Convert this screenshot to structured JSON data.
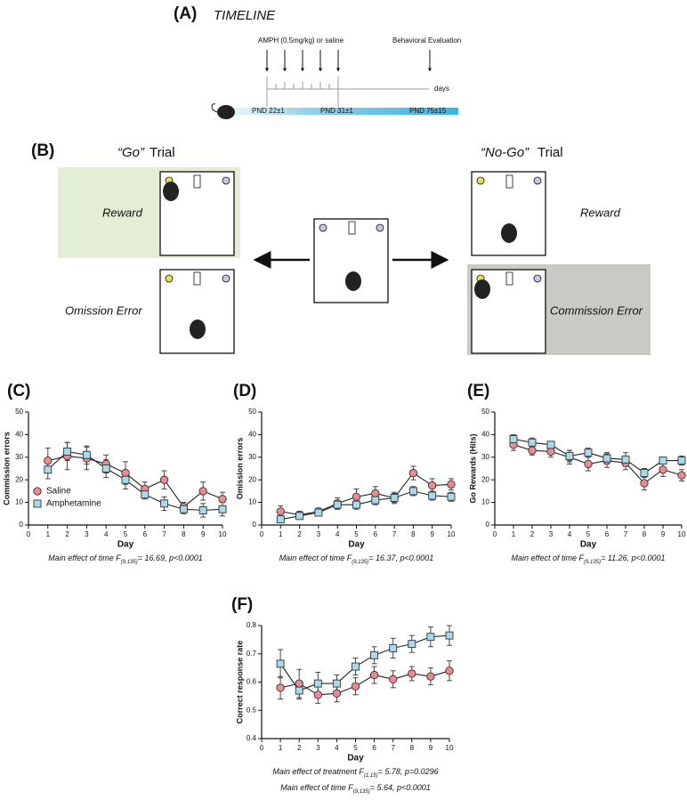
{
  "timeline": {
    "panel_label": "(A)",
    "title": "TIMELINE",
    "injection_label": "AMPH (0.5mg/kg) or saline",
    "evaluation_label": "Behavioral Evaluation",
    "days_label": "days",
    "stages": [
      "PND 22±1",
      "PND 31±1",
      "PND 75±15"
    ]
  },
  "task": {
    "panel_label": "(B)",
    "go_title": "“Go”",
    "go_trial_word": "Trial",
    "no_go_title": "“No-Go”",
    "no_go_trial_word": "Trial",
    "go_reward": "Reward",
    "omission": "Omission Error",
    "no_go_reward": "Reward",
    "commission": "Commission Error"
  },
  "chart_data": [
    {
      "type": "line",
      "panel_label": "(C)",
      "xlabel": "Day",
      "ylabel": "Commission errors",
      "x": [
        1,
        2,
        3,
        4,
        5,
        6,
        7,
        8,
        9,
        10
      ],
      "xlim": [
        0,
        10
      ],
      "xticks": [
        0,
        1,
        2,
        3,
        4,
        5,
        6,
        7,
        8,
        9,
        10
      ],
      "ylim": [
        0,
        50
      ],
      "yticks": [
        0,
        10,
        20,
        30,
        40,
        50
      ],
      "legend": true,
      "series": [
        {
          "name": "Saline",
          "color": "#ee8a92",
          "marker": "circle",
          "values": [
            28.5,
            30.5,
            29.5,
            27,
            23,
            16,
            20,
            8,
            15,
            11.5
          ],
          "errors": [
            5.5,
            6,
            5,
            4,
            5,
            3,
            4,
            2,
            4,
            3
          ]
        },
        {
          "name": "Amphetamine",
          "color": "#a9d9ec",
          "marker": "square",
          "values": [
            24.5,
            32.5,
            31,
            25,
            20,
            13.5,
            9.5,
            7,
            6.5,
            7
          ],
          "errors": [
            4,
            4,
            4,
            4,
            4,
            2,
            3,
            2,
            3,
            3
          ]
        }
      ],
      "captions": [
        {
          "text": "Main effect of time F",
          "sub": "(9,135)",
          "rest": "= 16.69, p<0.0001"
        }
      ]
    },
    {
      "type": "line",
      "panel_label": "(D)",
      "xlabel": "Day",
      "ylabel": "Omission errors",
      "x": [
        1,
        2,
        3,
        4,
        5,
        6,
        7,
        8,
        9,
        10
      ],
      "xlim": [
        0,
        10
      ],
      "xticks": [
        0,
        1,
        2,
        3,
        4,
        5,
        6,
        7,
        8,
        9,
        10
      ],
      "ylim": [
        0,
        50
      ],
      "yticks": [
        0,
        10,
        20,
        30,
        40,
        50
      ],
      "legend": false,
      "series": [
        {
          "name": "Saline",
          "color": "#ee8a92",
          "marker": "circle",
          "values": [
            6,
            4.5,
            6,
            9.5,
            12.5,
            14,
            12,
            23,
            17.5,
            18
          ],
          "errors": [
            2.5,
            1.5,
            1.5,
            2.5,
            3.5,
            3,
            2.5,
            3,
            3,
            2.5
          ]
        },
        {
          "name": "Amphetamine",
          "color": "#a9d9ec",
          "marker": "square",
          "values": [
            2.5,
            4,
            5.5,
            9,
            9,
            11,
            12,
            15,
            13,
            12.5
          ],
          "errors": [
            1.5,
            1.5,
            1.5,
            2,
            2,
            2,
            2,
            2,
            2,
            2
          ]
        }
      ],
      "captions": [
        {
          "text": "Main effect of time F",
          "sub": "(9,135)",
          "rest": "= 16.37, p<0.0001"
        }
      ]
    },
    {
      "type": "line",
      "panel_label": "(E)",
      "xlabel": "Day",
      "ylabel": "Go Rewards (Hits)",
      "x": [
        1,
        2,
        3,
        4,
        5,
        6,
        7,
        8,
        9,
        10
      ],
      "xlim": [
        0,
        10
      ],
      "xticks": [
        0,
        1,
        2,
        3,
        4,
        5,
        6,
        7,
        8,
        9,
        10
      ],
      "ylim": [
        0,
        50
      ],
      "yticks": [
        0,
        10,
        20,
        30,
        40,
        50
      ],
      "legend": false,
      "series": [
        {
          "name": "Saline",
          "color": "#ee8a92",
          "marker": "circle",
          "values": [
            35.5,
            33,
            32.5,
            30,
            27,
            28.5,
            27.5,
            18.5,
            24.5,
            22
          ],
          "errors": [
            2.5,
            2,
            2.5,
            3,
            3,
            3,
            3,
            3,
            3,
            2.5
          ]
        },
        {
          "name": "Amphetamine",
          "color": "#a9d9ec",
          "marker": "square",
          "values": [
            38,
            36.5,
            35.5,
            30.5,
            32,
            29.5,
            29,
            23,
            28.5,
            28.5
          ],
          "errors": [
            2,
            2,
            1.5,
            2.5,
            2,
            2.5,
            3,
            2,
            1.5,
            2
          ]
        }
      ],
      "captions": [
        {
          "text": "Main effect of time F",
          "sub": "(9,135)",
          "rest": "= 11.26, p<0.0001"
        }
      ]
    },
    {
      "type": "line",
      "panel_label": "(F)",
      "xlabel": "Day",
      "ylabel": "Correct response rate",
      "x": [
        1,
        2,
        3,
        4,
        5,
        6,
        7,
        8,
        9,
        10
      ],
      "xlim": [
        0,
        10
      ],
      "xticks": [
        0,
        1,
        2,
        3,
        4,
        5,
        6,
        7,
        8,
        9,
        10
      ],
      "ylim": [
        0.4,
        0.8
      ],
      "yticks": [
        0.4,
        0.5,
        0.6,
        0.7,
        0.8
      ],
      "legend": false,
      "series": [
        {
          "name": "Saline",
          "color": "#ee8a92",
          "marker": "circle",
          "values": [
            0.58,
            0.595,
            0.555,
            0.56,
            0.585,
            0.625,
            0.61,
            0.63,
            0.62,
            0.64
          ],
          "errors": [
            0.04,
            0.05,
            0.03,
            0.03,
            0.03,
            0.03,
            0.03,
            0.025,
            0.03,
            0.035
          ]
        },
        {
          "name": "Amphetamine",
          "color": "#a9d9ec",
          "marker": "square",
          "values": [
            0.665,
            0.57,
            0.595,
            0.595,
            0.655,
            0.695,
            0.72,
            0.735,
            0.76,
            0.765
          ],
          "errors": [
            0.05,
            0.03,
            0.04,
            0.03,
            0.03,
            0.03,
            0.035,
            0.03,
            0.035,
            0.035
          ]
        }
      ],
      "captions": [
        {
          "text": "Main effect of treatment F",
          "sub": "(1,15)",
          "rest": "= 5.78, p=0.0296"
        },
        {
          "text": "Main effect of time F",
          "sub": "(9,135)",
          "rest": "= 5.64, p<0.0001"
        }
      ]
    }
  ]
}
